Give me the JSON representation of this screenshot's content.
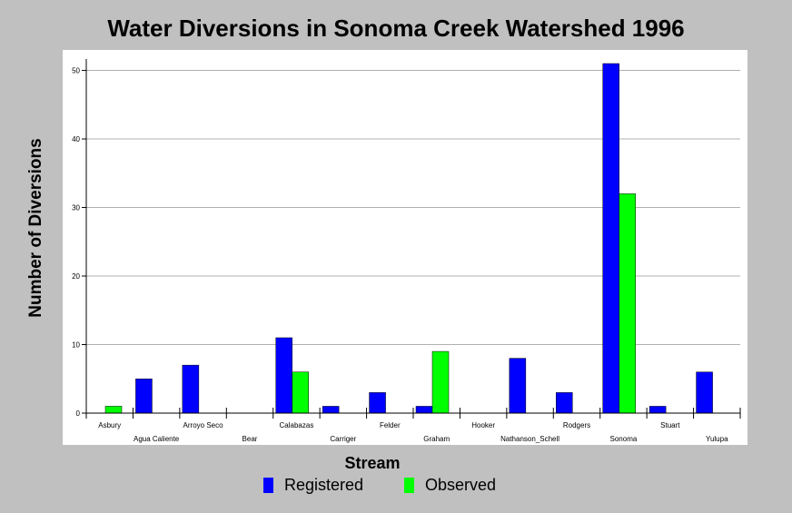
{
  "chart_data": {
    "type": "bar",
    "title": "Water Diversions in Sonoma Creek Watershed 1996",
    "xlabel": "Stream",
    "ylabel": "Number of Diversions",
    "categories": [
      "Asbury",
      "Agua Caliente",
      "Arroyo Seco",
      "Bear",
      "Calabazas",
      "Carriger",
      "Felder",
      "Graham",
      "Hooker",
      "Nathanson_Schell",
      "Rodgers",
      "Sonoma",
      "Stuart",
      "Yulupa"
    ],
    "series": [
      {
        "name": "Registered",
        "color": "#0000ff",
        "values": [
          0,
          5,
          7,
          0,
          11,
          1,
          3,
          1,
          0,
          8,
          3,
          51,
          1,
          6
        ]
      },
      {
        "name": "Observed",
        "color": "#00ff00",
        "values": [
          1,
          0,
          0,
          0,
          6,
          0,
          0,
          9,
          0,
          0,
          0,
          32,
          0,
          0
        ]
      }
    ],
    "ylim": [
      0,
      51
    ],
    "yticks": [
      0,
      10,
      20,
      30,
      40,
      50
    ],
    "grid": true,
    "legend_position": "bottom"
  }
}
